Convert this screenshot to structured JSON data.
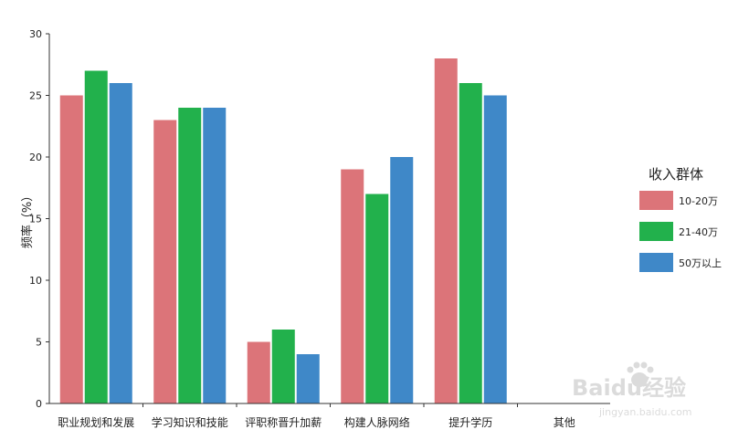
{
  "chart_data": {
    "type": "bar",
    "ylabel": "频率（%）",
    "ylim": [
      0,
      30
    ],
    "yticks": [
      0,
      5,
      10,
      15,
      20,
      25,
      30
    ],
    "categories": [
      "职业规划和发展",
      "学习知识和技能",
      "评职称晋升加薪",
      "构建人脉网络",
      "提升学历",
      "其他"
    ],
    "series": [
      {
        "name": "10-20万",
        "color": "#dc7479",
        "values": [
          25,
          23,
          5,
          19,
          28,
          0
        ]
      },
      {
        "name": "21-40万",
        "color": "#22b14c",
        "values": [
          27,
          24,
          6,
          17,
          26,
          0
        ]
      },
      {
        "name": "50万以上",
        "color": "#3f88c8",
        "values": [
          26,
          24,
          4,
          20,
          25,
          0
        ]
      }
    ],
    "legend": {
      "title": "收入群体",
      "position": "right"
    },
    "grid": false
  },
  "watermark": {
    "brand": "Baidu经验",
    "url": "jingyan.baidu.com"
  }
}
